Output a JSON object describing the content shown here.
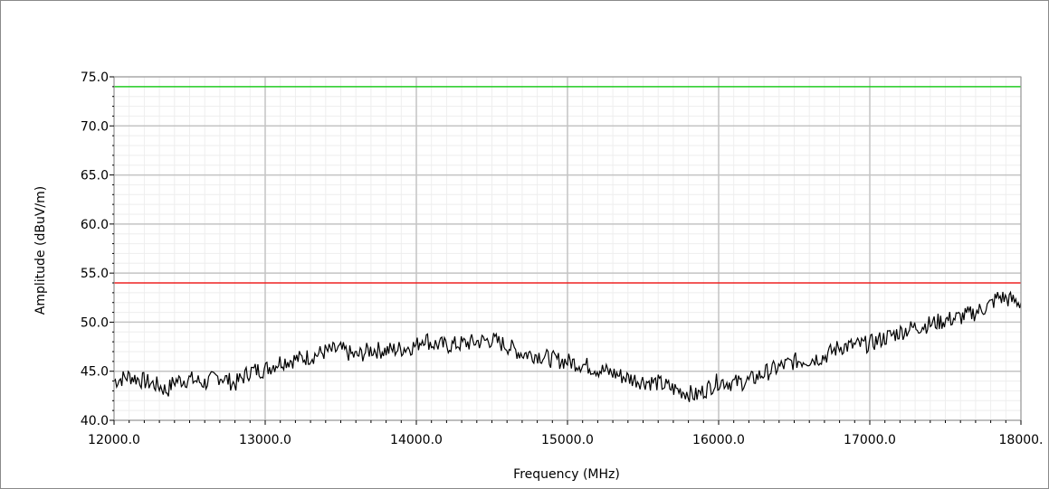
{
  "chart_data": {
    "type": "line",
    "xlabel": "Frequency (MHz)",
    "ylabel": "Amplitude (dBuV/m)",
    "xlim": [
      12000,
      18000
    ],
    "ylim": [
      40,
      75
    ],
    "x_ticks": [
      12000,
      13000,
      14000,
      15000,
      16000,
      17000,
      18000
    ],
    "x_tick_labels": [
      "12000.0",
      "13000.0",
      "14000.0",
      "15000.0",
      "16000.0",
      "17000.0",
      "18000."
    ],
    "y_ticks": [
      40,
      45,
      50,
      55,
      60,
      65,
      70,
      75
    ],
    "y_tick_labels": [
      "40.0",
      "45.0",
      "50.0",
      "55.0",
      "60.0",
      "65.0",
      "70.0",
      "75.0"
    ],
    "grid": true,
    "limit_lines": [
      {
        "value": 74,
        "color": "#22cc22"
      },
      {
        "value": 54,
        "color": "#ee2222"
      }
    ],
    "series": [
      {
        "color": "#000000",
        "x": [
          12000,
          12100,
          12200,
          12300,
          12350,
          12400,
          12500,
          12600,
          12700,
          12800,
          12900,
          13000,
          13100,
          13200,
          13300,
          13400,
          13500,
          13600,
          13700,
          13800,
          13900,
          14000,
          14050,
          14100,
          14200,
          14300,
          14400,
          14500,
          14600,
          14700,
          14800,
          14900,
          15000,
          15100,
          15200,
          15300,
          15400,
          15500,
          15600,
          15700,
          15800,
          15850,
          15900,
          16000,
          16100,
          16200,
          16300,
          16400,
          16500,
          16600,
          16700,
          16800,
          16900,
          17000,
          17100,
          17200,
          17300,
          17400,
          17500,
          17600,
          17700,
          17800,
          17850,
          17900,
          18000
        ],
        "y": [
          44,
          44.5,
          44,
          43.5,
          43,
          44,
          44.2,
          43.8,
          44.5,
          43.7,
          45,
          45.2,
          46,
          46.2,
          46.5,
          47,
          47.2,
          46.5,
          47.2,
          47.1,
          47.3,
          47.6,
          48.5,
          47.8,
          47.6,
          47.8,
          48,
          48.2,
          47.6,
          46.8,
          46.7,
          46.2,
          46,
          45.7,
          45.2,
          44.8,
          44.3,
          44,
          43.8,
          43.2,
          42.8,
          42.5,
          43,
          44,
          43.8,
          44,
          44.8,
          45.4,
          46,
          46.2,
          46.5,
          47.5,
          47.6,
          47.8,
          48.4,
          49,
          49.5,
          49.8,
          50.2,
          50.5,
          51,
          51.8,
          52.6,
          52.4,
          52
        ]
      }
    ]
  }
}
